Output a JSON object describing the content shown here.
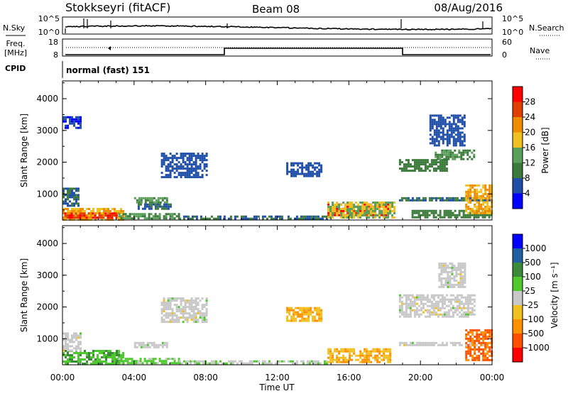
{
  "header": {
    "station": "Stokkseyri (fitACF)",
    "beam": "Beam 08",
    "date": "08/Aug/2016"
  },
  "noise_panel": {
    "left_label": "N.Sky",
    "right_label": "N.Search",
    "left_ticks": [
      "10^5",
      "10^0"
    ],
    "right_ticks": [
      "10^5",
      "10^0"
    ]
  },
  "freq_panel": {
    "left_label_line1": "Freq.",
    "left_label_line2": "[MHz]",
    "left_ticks": [
      "18",
      "8"
    ],
    "right_label": "Nave",
    "right_ticks": [
      "60",
      "0"
    ],
    "cpid_label": "CPID",
    "cpid_text": "normal (fast) 151"
  },
  "colors": {
    "power": [
      "#0000ff",
      "#1f4ea8",
      "#3a7a3a",
      "#5aa05a",
      "#f0c020",
      "#f08c00",
      "#e04000",
      "#ff0000"
    ],
    "velocity": [
      "#ff0000",
      "#ff5000",
      "#ff9000",
      "#f0c020",
      "#c8c8c8",
      "#50c830",
      "#3a8a3a",
      "#2060a0",
      "#0000ff"
    ]
  },
  "power_colorbar": {
    "label": "Power [dB]",
    "ticks": [
      "28",
      "24",
      "20",
      "16",
      "12",
      "8",
      "4"
    ]
  },
  "velocity_colorbar": {
    "label": "Velocity [m s⁻¹]",
    "ticks": [
      "1000",
      "500",
      "100",
      "25",
      "-25",
      "-100",
      "-500",
      "-1000"
    ]
  },
  "chart_data": [
    {
      "type": "heatmap",
      "name": "power",
      "ylabel": "Slant Range [km]",
      "xlabel": "Time UT",
      "x_ticks": [
        "00:00",
        "04:00",
        "08:00",
        "12:00",
        "16:00",
        "20:00",
        "00:00"
      ],
      "y_ticks": [
        "1000",
        "2000",
        "3000",
        "4000"
      ],
      "xlim": [
        0,
        24
      ],
      "ylim": [
        180,
        4560
      ],
      "cbar_range": [
        0,
        32
      ],
      "regions": [
        {
          "t0": 0.0,
          "t1": 3.4,
          "r0": 200,
          "r1": 560,
          "v": 20
        },
        {
          "t0": 0.1,
          "t1": 3.0,
          "r0": 250,
          "r1": 420,
          "v": 28
        },
        {
          "t0": 0.0,
          "t1": 0.9,
          "r0": 600,
          "r1": 1200,
          "v": 8
        },
        {
          "t0": 3.0,
          "t1": 6.5,
          "r0": 260,
          "r1": 400,
          "v": 12
        },
        {
          "t0": 6.5,
          "t1": 14.8,
          "r0": 210,
          "r1": 320,
          "v": 8
        },
        {
          "t0": 4.0,
          "t1": 5.8,
          "r0": 760,
          "r1": 900,
          "v": 12
        },
        {
          "t0": 4.2,
          "t1": 6.0,
          "r0": 560,
          "r1": 700,
          "v": 8
        },
        {
          "t0": 5.5,
          "t1": 8.0,
          "r0": 1500,
          "r1": 2300,
          "v": 6
        },
        {
          "t0": 12.5,
          "t1": 14.5,
          "r0": 1550,
          "r1": 2000,
          "v": 6
        },
        {
          "t0": 14.8,
          "t1": 18.3,
          "r0": 320,
          "r1": 700,
          "v": 28
        },
        {
          "t0": 14.8,
          "t1": 18.6,
          "r0": 280,
          "r1": 760,
          "v": 16
        },
        {
          "t0": 18.8,
          "t1": 24.0,
          "r0": 800,
          "r1": 900,
          "v": 8
        },
        {
          "t0": 18.8,
          "t1": 21.5,
          "r0": 1700,
          "r1": 2100,
          "v": 10
        },
        {
          "t0": 20.8,
          "t1": 23.0,
          "r0": 2100,
          "r1": 2400,
          "v": 12
        },
        {
          "t0": 19.5,
          "t1": 24.0,
          "r0": 250,
          "r1": 500,
          "v": 10
        },
        {
          "t0": 22.5,
          "t1": 24.0,
          "r0": 400,
          "r1": 1300,
          "v": 20
        },
        {
          "t0": 20.5,
          "t1": 22.5,
          "r0": 2500,
          "r1": 3500,
          "v": 6
        },
        {
          "t0": 0.0,
          "t1": 1.0,
          "r0": 3100,
          "r1": 3450,
          "v": 4
        }
      ]
    },
    {
      "type": "heatmap",
      "name": "velocity",
      "ylabel": "Slant Range [km]",
      "xlabel": "Time UT",
      "x_ticks": [
        "00:00",
        "04:00",
        "08:00",
        "12:00",
        "16:00",
        "20:00",
        "00:00"
      ],
      "y_ticks": [
        "1000",
        "2000",
        "3000",
        "4000"
      ],
      "xlim": [
        0,
        24
      ],
      "ylim": [
        180,
        4560
      ],
      "cbar_range": [
        -1000,
        1000
      ],
      "regions": [
        {
          "t0": 0.0,
          "t1": 3.4,
          "r0": 200,
          "r1": 650,
          "v": 300
        },
        {
          "t0": 0.0,
          "t1": 1.0,
          "r0": 650,
          "r1": 1200,
          "v": 0
        },
        {
          "t0": 3.0,
          "t1": 6.5,
          "r0": 260,
          "r1": 400,
          "v": 200
        },
        {
          "t0": 4.0,
          "t1": 5.8,
          "r0": 760,
          "r1": 900,
          "v": 0
        },
        {
          "t0": 5.5,
          "t1": 8.0,
          "r0": 1500,
          "r1": 2300,
          "v": 0
        },
        {
          "t0": 6.5,
          "t1": 14.8,
          "r0": 210,
          "r1": 320,
          "v": 80
        },
        {
          "t0": 12.5,
          "t1": 14.5,
          "r0": 1550,
          "r1": 2000,
          "v": -300
        },
        {
          "t0": 14.8,
          "t1": 18.3,
          "r0": 280,
          "r1": 700,
          "v": -300
        },
        {
          "t0": 18.8,
          "t1": 24.0,
          "r0": 800,
          "r1": 900,
          "v": 0
        },
        {
          "t0": 18.8,
          "t1": 23.0,
          "r0": 1700,
          "r1": 2400,
          "v": 0
        },
        {
          "t0": 22.5,
          "t1": 24.0,
          "r0": 350,
          "r1": 1300,
          "v": -600
        },
        {
          "t0": 21.0,
          "t1": 22.5,
          "r0": 2600,
          "r1": 3400,
          "v": 0
        }
      ]
    }
  ]
}
